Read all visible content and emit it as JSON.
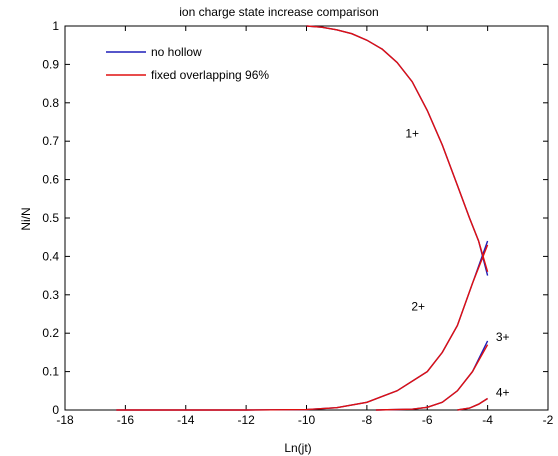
{
  "chart_data": {
    "type": "line",
    "title": "ion charge state increase comparison",
    "xlabel": "Ln(jt)",
    "ylabel": "Ni/N",
    "xlim": [
      -18,
      -2
    ],
    "ylim": [
      0,
      1
    ],
    "xticks": [
      -18,
      -16,
      -14,
      -12,
      -10,
      -8,
      -6,
      -4,
      -2
    ],
    "yticks": [
      0,
      0.1,
      0.2,
      0.3,
      0.4,
      0.5,
      0.6,
      0.7,
      0.8,
      0.9,
      1
    ],
    "ytick_labels": [
      "0",
      "0.1",
      "0.2",
      "0.3",
      "0.4",
      "0.5",
      "0.6",
      "0.7",
      "0.8",
      "0.9",
      "1"
    ],
    "grid": false,
    "legend_position": "top-left",
    "series": [
      {
        "name": "no hollow",
        "color": "#1f1fb8",
        "curves": [
          {
            "label": "1+",
            "x": [
              -10.0,
              -9.5,
              -9.0,
              -8.5,
              -8.0,
              -7.5,
              -7.0,
              -6.5,
              -6.0,
              -5.5,
              -5.0,
              -4.6,
              -4.3,
              -4.0
            ],
            "y": [
              1.0,
              0.997,
              0.99,
              0.98,
              0.963,
              0.94,
              0.905,
              0.855,
              0.78,
              0.69,
              0.585,
              0.5,
              0.44,
              0.35
            ]
          },
          {
            "label": "2+",
            "x": [
              -16.3,
              -14.0,
              -12.0,
              -10.0,
              -9.0,
              -8.0,
              -7.0,
              -6.0,
              -5.5,
              -5.0,
              -4.5,
              -4.0
            ],
            "y": [
              0.0,
              0.0,
              0.0,
              0.001,
              0.006,
              0.02,
              0.05,
              0.1,
              0.15,
              0.22,
              0.33,
              0.44
            ]
          },
          {
            "label": "3+",
            "x": [
              -7.7,
              -6.5,
              -6.0,
              -5.5,
              -5.0,
              -4.5,
              -4.0
            ],
            "y": [
              0.0,
              0.002,
              0.007,
              0.02,
              0.05,
              0.1,
              0.18
            ]
          },
          {
            "label": "4+",
            "x": [
              -5.0,
              -4.6,
              -4.3,
              -4.0
            ],
            "y": [
              0.0,
              0.005,
              0.015,
              0.03
            ]
          }
        ]
      },
      {
        "name": "fixed overlapping 96%",
        "color": "#e01010",
        "curves": [
          {
            "label": "1+",
            "x": [
              -10.0,
              -9.5,
              -9.0,
              -8.5,
              -8.0,
              -7.5,
              -7.0,
              -6.5,
              -6.0,
              -5.5,
              -5.0,
              -4.6,
              -4.3,
              -4.0
            ],
            "y": [
              1.0,
              0.997,
              0.99,
              0.98,
              0.963,
              0.94,
              0.905,
              0.855,
              0.78,
              0.69,
              0.585,
              0.5,
              0.44,
              0.36
            ]
          },
          {
            "label": "2+",
            "x": [
              -16.3,
              -14.0,
              -12.0,
              -10.0,
              -9.0,
              -8.0,
              -7.0,
              -6.0,
              -5.5,
              -5.0,
              -4.5,
              -4.0
            ],
            "y": [
              0.0,
              0.0,
              0.0,
              0.001,
              0.006,
              0.02,
              0.05,
              0.1,
              0.15,
              0.22,
              0.33,
              0.43
            ]
          },
          {
            "label": "3+",
            "x": [
              -7.7,
              -6.5,
              -6.0,
              -5.5,
              -5.0,
              -4.5,
              -4.0
            ],
            "y": [
              0.0,
              0.002,
              0.007,
              0.02,
              0.05,
              0.1,
              0.17
            ]
          },
          {
            "label": "4+",
            "x": [
              -5.0,
              -4.6,
              -4.3,
              -4.0
            ],
            "y": [
              0.0,
              0.005,
              0.015,
              0.03
            ]
          }
        ]
      }
    ],
    "annotations": [
      {
        "text": "1+",
        "x": -6.5,
        "y": 0.72
      },
      {
        "text": "2+",
        "x": -6.3,
        "y": 0.27
      },
      {
        "text": "3+",
        "x": -3.5,
        "y": 0.19
      },
      {
        "text": "4+",
        "x": -3.5,
        "y": 0.045
      }
    ]
  }
}
